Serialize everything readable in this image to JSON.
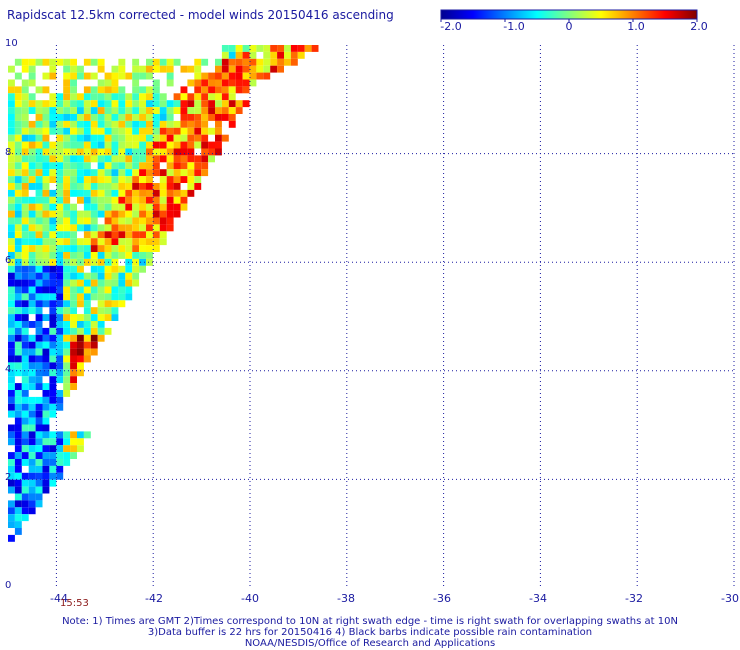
{
  "title": "Rapidscat 12.5km corrected - model winds 20150416 ascending",
  "colorbar": {
    "min": -2.0,
    "max": 2.0,
    "tick_labels": [
      "-2.0",
      "-1.0",
      "0",
      "1.0",
      "2.0"
    ],
    "tick_values": [
      -2,
      -1,
      0,
      1,
      2
    ],
    "colors": [
      "#00008f",
      "#0000ff",
      "#0080ff",
      "#00ffff",
      "#80ff80",
      "#ffff00",
      "#ff8000",
      "#ff0000",
      "#800000"
    ]
  },
  "axes": {
    "lon_labels": [
      "-44",
      "-42",
      "-40",
      "-38",
      "-36",
      "-34",
      "-32",
      "-30"
    ],
    "lon_values": [
      -44,
      -42,
      -40,
      -38,
      -36,
      -34,
      -32,
      -30
    ],
    "lat_labels": [
      "10",
      "8",
      "6",
      "4",
      "2",
      "0"
    ],
    "lat_values": [
      10,
      8,
      6,
      4,
      2,
      0
    ],
    "lon_range": [
      -45,
      -30
    ],
    "lat_range": [
      0,
      10
    ],
    "grid": "dotted"
  },
  "time_label": "15:53",
  "notes": [
    "Note: 1) Times are GMT 2)Times correspond to 10N at right swath edge - time is right swath for overlapping swaths at 10N",
    "3)Data buffer is 22 hrs for 20150416 4) Black barbs indicate possible rain contamination",
    "NOAA/NESDIS/Office of Research and Applications"
  ]
}
